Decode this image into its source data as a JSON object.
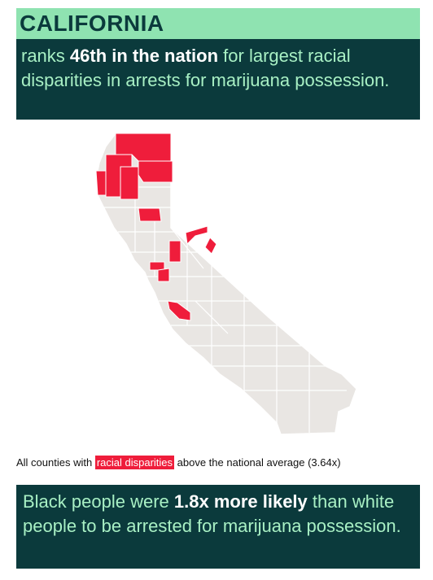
{
  "header": {
    "title": "CALIFORNIA",
    "subtitle_pre": "ranks ",
    "subtitle_bold": "46th in the nation",
    "subtitle_post": " for largest racial disparities in arrests for marijuana possession."
  },
  "caption": {
    "pre": "All counties with ",
    "highlight": "racial disparities",
    "post": " above the national average (3.64x)"
  },
  "footer": {
    "pre": "Black people were ",
    "bold": "1.8x more likely",
    "post": " than white people to be arrested for marijuana possession."
  },
  "colors": {
    "title_bg": "#8fe3b1",
    "dark_bg": "#0b3a3c",
    "highlight": "#ef1d3b",
    "county_fill": "#e9e6e3",
    "county_border": "#ffffff"
  }
}
